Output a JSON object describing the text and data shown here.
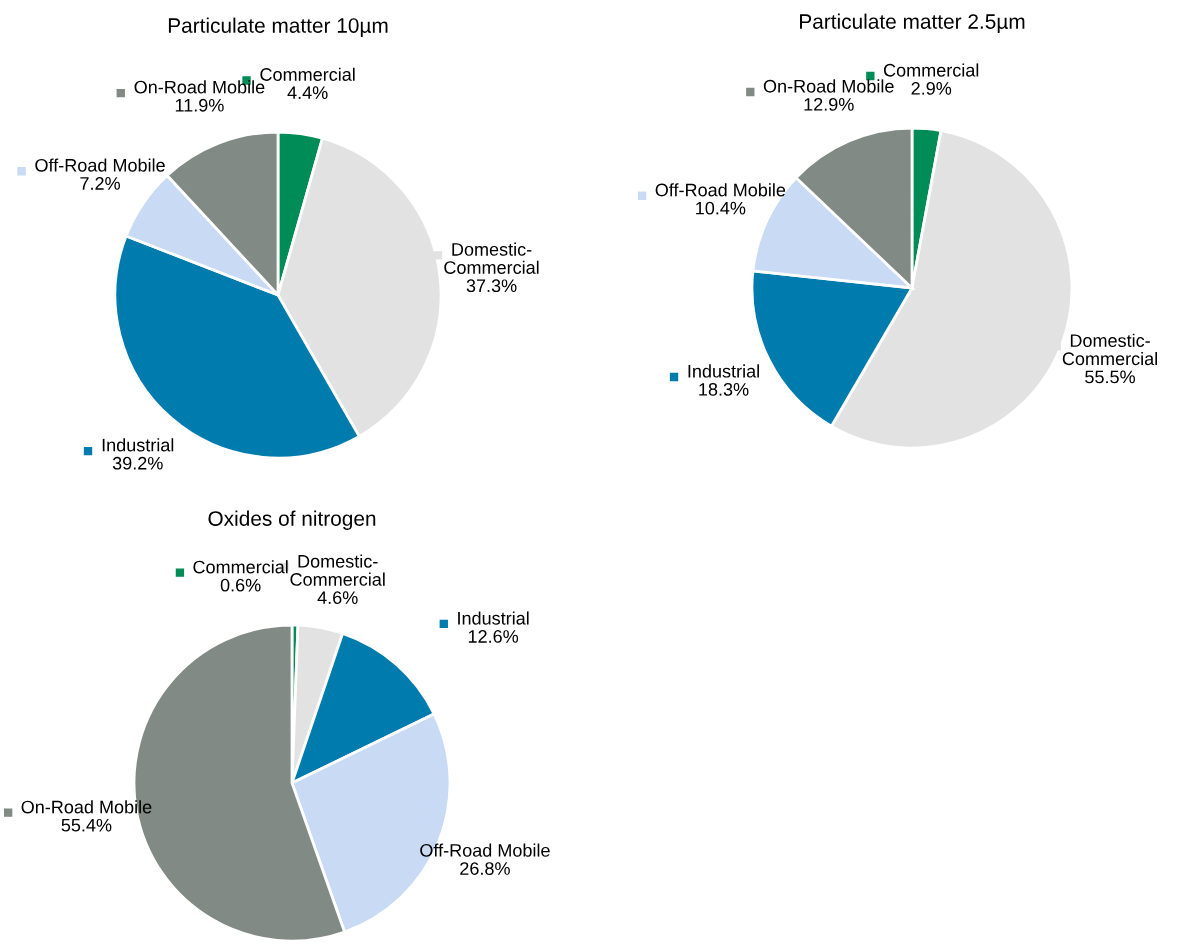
{
  "chart_data": [
    {
      "type": "pie",
      "title": "Particulate matter 10µm",
      "categories": [
        "Commercial",
        "Domestic-Commercial",
        "Industrial",
        "Off-Road Mobile",
        "On-Road Mobile"
      ],
      "values": [
        4.4,
        37.3,
        39.2,
        7.2,
        11.9
      ],
      "value_labels": [
        "4.4%",
        "37.3%",
        "39.2%",
        "7.2%",
        "11.9%"
      ],
      "colors": [
        "#008c57",
        "#e1e2e1",
        "#007bae",
        "#c9daf4",
        "#818a85"
      ],
      "legend": "top"
    },
    {
      "type": "pie",
      "title": "Particulate matter 2.5µm",
      "categories": [
        "Commercial",
        "Domestic-Commercial",
        "Industrial",
        "Off-Road Mobile",
        "On-Road Mobile"
      ],
      "values": [
        2.9,
        55.5,
        18.3,
        10.4,
        12.9
      ],
      "value_labels": [
        "2.9%",
        "55.5%",
        "18.3%",
        "10.4%",
        "12.9%"
      ],
      "colors": [
        "#008c57",
        "#e1e2e1",
        "#007bae",
        "#c9daf4",
        "#818a85"
      ],
      "legend": "top"
    },
    {
      "type": "pie",
      "title": "Oxides of nitrogen",
      "categories": [
        "Commercial",
        "Domestic-Commercial",
        "Industrial",
        "Off-Road Mobile",
        "On-Road Mobile"
      ],
      "values": [
        0.6,
        4.6,
        12.6,
        26.8,
        55.4
      ],
      "value_labels": [
        "0.6%",
        "4.6%",
        "12.6%",
        "26.8%",
        "55.4%"
      ],
      "colors": [
        "#008c57",
        "#e1e2e1",
        "#007bae",
        "#c9daf4",
        "#818a85"
      ],
      "legend": "top"
    }
  ]
}
